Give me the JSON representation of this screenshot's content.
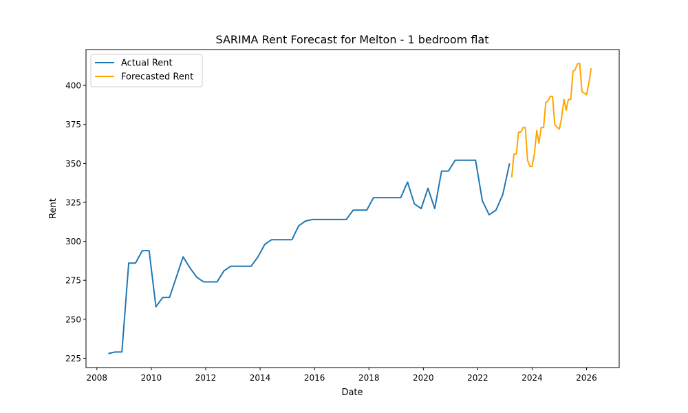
{
  "chart_data": {
    "type": "line",
    "title": "SARIMA Rent Forecast for Melton - 1 bedroom flat",
    "xlabel": "Date",
    "ylabel": "Rent",
    "xlim": [
      2007.6,
      2027.2
    ],
    "ylim": [
      219,
      423
    ],
    "xticks": [
      2008,
      2010,
      2012,
      2014,
      2016,
      2018,
      2020,
      2022,
      2024,
      2026
    ],
    "xtick_labels": [
      "2008",
      "2010",
      "2012",
      "2014",
      "2016",
      "2018",
      "2020",
      "2022",
      "2024",
      "2026"
    ],
    "yticks": [
      225,
      250,
      275,
      300,
      325,
      350,
      375,
      400
    ],
    "ytick_labels": [
      "225",
      "250",
      "275",
      "300",
      "325",
      "350",
      "375",
      "400"
    ],
    "grid": false,
    "legend_position": "top-left",
    "series": [
      {
        "name": "Actual Rent",
        "color": "#1f77b4",
        "points": [
          [
            2008.42,
            228
          ],
          [
            2008.67,
            229
          ],
          [
            2008.92,
            229
          ],
          [
            2009.17,
            286
          ],
          [
            2009.42,
            286
          ],
          [
            2009.67,
            294
          ],
          [
            2009.92,
            294
          ],
          [
            2010.17,
            258
          ],
          [
            2010.42,
            264
          ],
          [
            2010.67,
            264
          ],
          [
            2010.92,
            277
          ],
          [
            2011.17,
            290
          ],
          [
            2011.42,
            283
          ],
          [
            2011.67,
            277
          ],
          [
            2011.92,
            274
          ],
          [
            2012.17,
            274
          ],
          [
            2012.42,
            274
          ],
          [
            2012.67,
            281
          ],
          [
            2012.92,
            284
          ],
          [
            2013.17,
            284
          ],
          [
            2013.42,
            284
          ],
          [
            2013.67,
            284
          ],
          [
            2013.92,
            290
          ],
          [
            2014.17,
            298
          ],
          [
            2014.42,
            301
          ],
          [
            2014.67,
            301
          ],
          [
            2014.92,
            301
          ],
          [
            2015.17,
            301
          ],
          [
            2015.42,
            310
          ],
          [
            2015.67,
            313
          ],
          [
            2015.92,
            314
          ],
          [
            2016.17,
            314
          ],
          [
            2016.42,
            314
          ],
          [
            2016.67,
            314
          ],
          [
            2016.92,
            314
          ],
          [
            2017.17,
            314
          ],
          [
            2017.42,
            320
          ],
          [
            2017.67,
            320
          ],
          [
            2017.92,
            320
          ],
          [
            2018.17,
            328
          ],
          [
            2018.42,
            328
          ],
          [
            2018.67,
            328
          ],
          [
            2018.92,
            328
          ],
          [
            2019.17,
            328
          ],
          [
            2019.42,
            338
          ],
          [
            2019.67,
            324
          ],
          [
            2019.92,
            321
          ],
          [
            2020.17,
            334
          ],
          [
            2020.42,
            321
          ],
          [
            2020.67,
            345
          ],
          [
            2020.92,
            345
          ],
          [
            2021.17,
            352
          ],
          [
            2021.42,
            352
          ],
          [
            2021.67,
            352
          ],
          [
            2021.92,
            352
          ],
          [
            2022.17,
            326
          ],
          [
            2022.42,
            317
          ],
          [
            2022.67,
            320
          ],
          [
            2022.92,
            330
          ],
          [
            2023.17,
            350
          ]
        ]
      },
      {
        "name": "Forecasted Rent",
        "color": "#ffa500",
        "points": [
          [
            2023.25,
            341
          ],
          [
            2023.33,
            356
          ],
          [
            2023.42,
            356
          ],
          [
            2023.5,
            370
          ],
          [
            2023.58,
            370
          ],
          [
            2023.67,
            373
          ],
          [
            2023.75,
            373
          ],
          [
            2023.83,
            352
          ],
          [
            2023.92,
            348
          ],
          [
            2024.0,
            348
          ],
          [
            2024.08,
            356
          ],
          [
            2024.17,
            371
          ],
          [
            2024.25,
            363
          ],
          [
            2024.33,
            373
          ],
          [
            2024.42,
            373
          ],
          [
            2024.5,
            389
          ],
          [
            2024.58,
            390
          ],
          [
            2024.67,
            393
          ],
          [
            2024.75,
            393
          ],
          [
            2024.83,
            375
          ],
          [
            2024.92,
            373
          ],
          [
            2025.0,
            372
          ],
          [
            2025.08,
            379
          ],
          [
            2025.17,
            391
          ],
          [
            2025.25,
            384
          ],
          [
            2025.33,
            391
          ],
          [
            2025.42,
            391
          ],
          [
            2025.5,
            409
          ],
          [
            2025.58,
            410
          ],
          [
            2025.67,
            414
          ],
          [
            2025.75,
            414
          ],
          [
            2025.83,
            396
          ],
          [
            2025.92,
            395
          ],
          [
            2026.0,
            394
          ],
          [
            2026.08,
            401
          ],
          [
            2026.17,
            411
          ]
        ]
      }
    ]
  }
}
